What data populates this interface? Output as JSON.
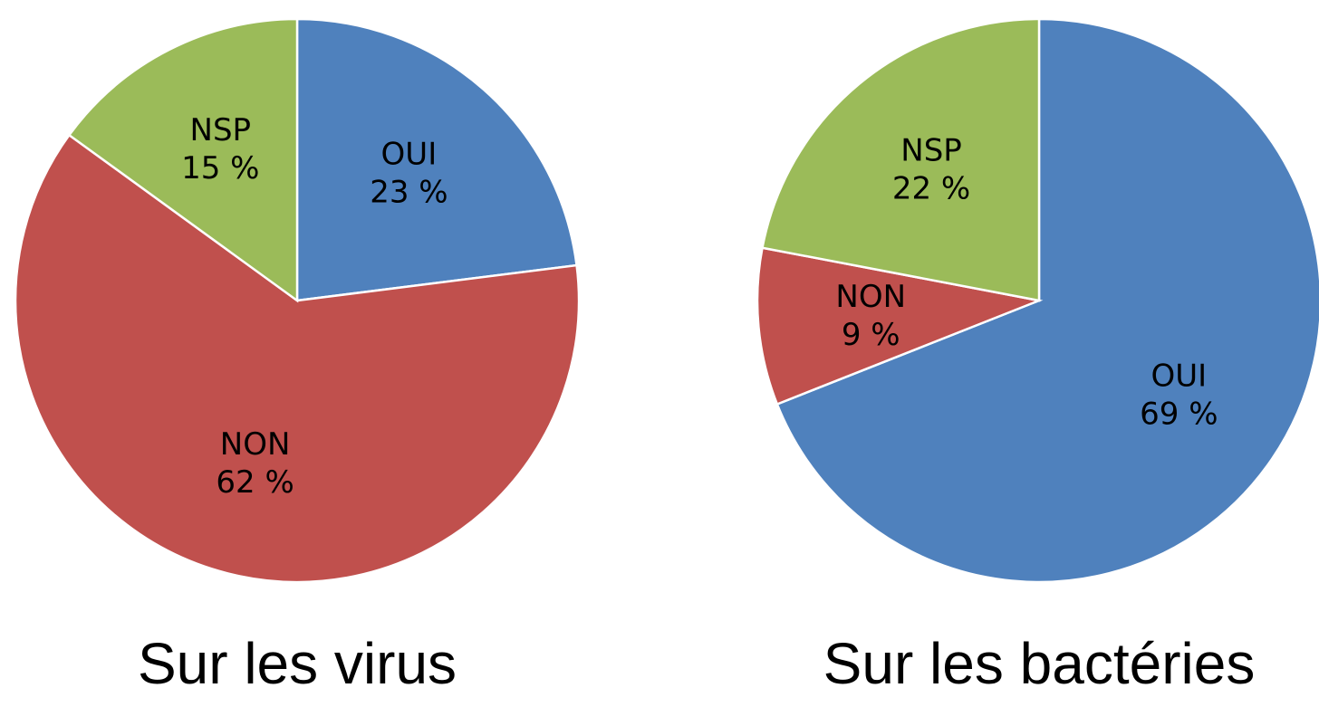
{
  "chart_data": [
    {
      "type": "pie",
      "title": "Sur les virus",
      "categories": [
        "OUI",
        "NON",
        "NSP"
      ],
      "values": [
        23,
        62,
        15
      ],
      "value_labels": [
        "23 %",
        "62 %",
        "15 %"
      ],
      "colors": [
        "#4f81bd",
        "#c0504d",
        "#9bbb59"
      ]
    },
    {
      "type": "pie",
      "title": "Sur les bactéries",
      "categories": [
        "OUI",
        "NON",
        "NSP"
      ],
      "values": [
        69,
        9,
        22
      ],
      "value_labels": [
        "69 %",
        "9 %",
        "22 %"
      ],
      "colors": [
        "#4f81bd",
        "#c0504d",
        "#9bbb59"
      ]
    }
  ]
}
